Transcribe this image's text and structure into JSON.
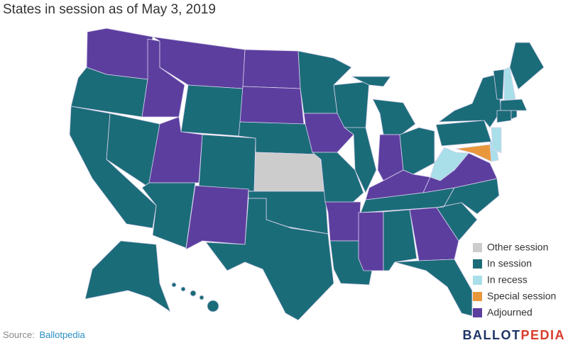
{
  "title": "States in session as of May 3, 2019",
  "legend": [
    {
      "label": "Other session",
      "color": "#cccccc"
    },
    {
      "label": "In session",
      "color": "#1b6c79"
    },
    {
      "label": "In recess",
      "color": "#a9dfe9"
    },
    {
      "label": "Special session",
      "color": "#e8973b"
    },
    {
      "label": "Adjourned",
      "color": "#5c3e9f"
    }
  ],
  "source": {
    "label": "Source:",
    "name": "Ballotpedia"
  },
  "logo": {
    "part1": "BALLOT",
    "part2": "PEDIA"
  }
}
